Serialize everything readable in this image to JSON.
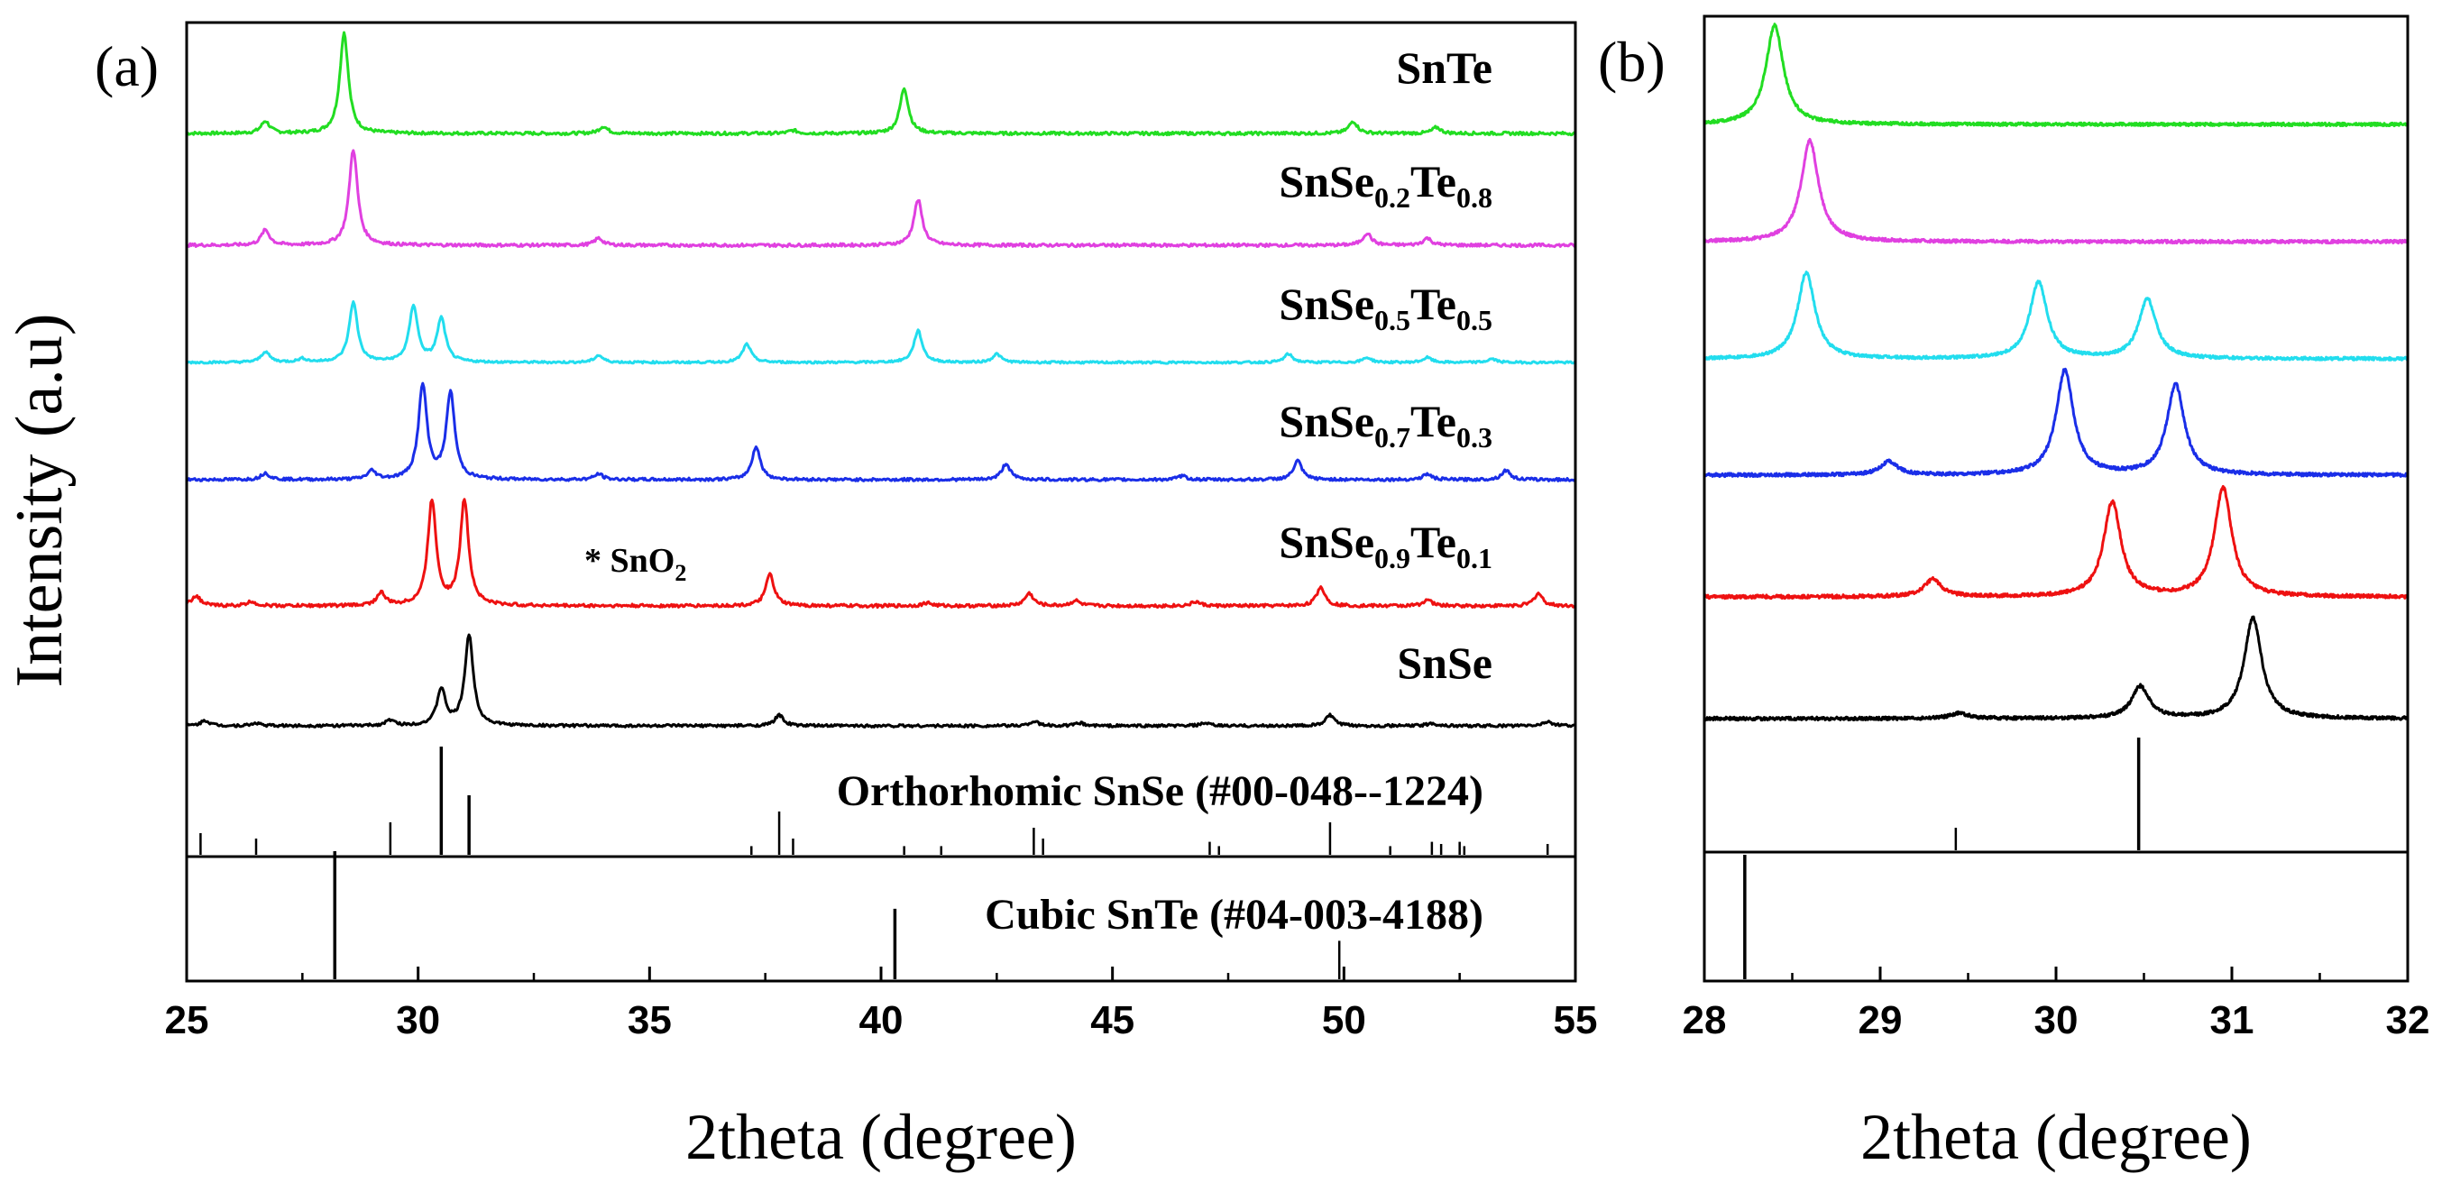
{
  "chart_data": [
    {
      "type": "line",
      "panel_label": "(a)",
      "xlabel": "2theta (degree)",
      "ylabel": "Intensity (a.u)",
      "xlim": [
        25,
        55
      ],
      "xticks": [
        25,
        30,
        35,
        40,
        45,
        50,
        55
      ],
      "xtick_labels": [
        "25",
        "30",
        "35",
        "40",
        "45",
        "50",
        "55"
      ],
      "series": [
        {
          "name": "SnTe",
          "label_main": "SnTe",
          "color": "#22dd22",
          "peaks": [
            [
              26.7,
              0.12
            ],
            [
              28.4,
              1.0
            ],
            [
              34.0,
              0.07
            ],
            [
              38.1,
              0.03
            ],
            [
              40.5,
              0.45
            ],
            [
              50.2,
              0.12
            ],
            [
              52.0,
              0.06
            ]
          ]
        },
        {
          "name": "SnSe0.2Te0.8",
          "label_main": "SnSe",
          "label_sub1": "0.2",
          "label_mid": "Te",
          "label_sub2": "0.8",
          "color": "#e040e0",
          "peaks": [
            [
              26.7,
              0.15
            ],
            [
              28.6,
              0.95
            ],
            [
              33.9,
              0.07
            ],
            [
              40.8,
              0.45
            ],
            [
              50.5,
              0.12
            ],
            [
              51.8,
              0.07
            ]
          ]
        },
        {
          "name": "SnSe0.5Te0.5",
          "label_main": "SnSe",
          "label_sub1": "0.5",
          "label_mid": "Te",
          "label_sub2": "0.5",
          "color": "#22ddee",
          "peaks": [
            [
              26.7,
              0.15
            ],
            [
              27.5,
              0.05
            ],
            [
              28.6,
              0.85
            ],
            [
              29.9,
              0.8
            ],
            [
              30.5,
              0.62
            ],
            [
              33.9,
              0.1
            ],
            [
              37.1,
              0.26
            ],
            [
              40.8,
              0.45
            ],
            [
              42.5,
              0.12
            ],
            [
              48.8,
              0.12
            ],
            [
              50.5,
              0.07
            ],
            [
              51.8,
              0.07
            ],
            [
              53.2,
              0.05
            ]
          ]
        },
        {
          "name": "SnSe0.7Te0.3",
          "label_main": "SnSe",
          "label_sub1": "0.7",
          "label_mid": "Te",
          "label_sub2": "0.3",
          "color": "#1a2ee8",
          "peaks": [
            [
              26.7,
              0.07
            ],
            [
              29.0,
              0.09
            ],
            [
              30.1,
              1.0
            ],
            [
              30.7,
              0.92
            ],
            [
              33.9,
              0.06
            ],
            [
              37.3,
              0.35
            ],
            [
              42.7,
              0.17
            ],
            [
              46.5,
              0.04
            ],
            [
              49.0,
              0.2
            ],
            [
              51.8,
              0.06
            ],
            [
              53.5,
              0.1
            ]
          ]
        },
        {
          "name": "SnSe0.9Te0.1",
          "label_main": "SnSe",
          "label_sub1": "0.9",
          "label_mid": "Te",
          "label_sub2": "0.1",
          "color": "#ee1111",
          "peaks": [
            [
              25.2,
              0.1
            ],
            [
              26.4,
              0.04
            ],
            [
              29.2,
              0.12
            ],
            [
              30.3,
              1.0
            ],
            [
              31.0,
              1.0
            ],
            [
              37.6,
              0.3
            ],
            [
              41.0,
              0.03
            ],
            [
              43.2,
              0.12
            ],
            [
              44.2,
              0.05
            ],
            [
              46.8,
              0.04
            ],
            [
              49.5,
              0.18
            ],
            [
              51.8,
              0.06
            ],
            [
              54.2,
              0.12
            ]
          ]
        },
        {
          "name": "SnSe",
          "label_main": "SnSe",
          "color": "#000000",
          "peaks": [
            [
              25.4,
              0.06
            ],
            [
              26.5,
              0.03
            ],
            [
              29.4,
              0.06
            ],
            [
              30.5,
              0.4
            ],
            [
              31.1,
              1.0
            ],
            [
              37.8,
              0.12
            ],
            [
              43.3,
              0.05
            ],
            [
              44.3,
              0.03
            ],
            [
              47.0,
              0.03
            ],
            [
              49.7,
              0.12
            ],
            [
              51.9,
              0.03
            ],
            [
              54.4,
              0.05
            ]
          ]
        }
      ],
      "annotation": {
        "text": "* SnO",
        "sub": "2",
        "x": 34.0
      },
      "references": [
        {
          "name": "Orthorhomic SnSe (#00-048--1224)",
          "label": "Orthorhomic SnSe (#00-048--1224)",
          "sticks": [
            [
              25.3,
              0.2
            ],
            [
              26.5,
              0.15
            ],
            [
              29.4,
              0.3
            ],
            [
              30.5,
              1.0
            ],
            [
              31.1,
              0.55
            ],
            [
              37.2,
              0.08
            ],
            [
              37.8,
              0.4
            ],
            [
              38.1,
              0.15
            ],
            [
              40.5,
              0.08
            ],
            [
              41.3,
              0.08
            ],
            [
              43.3,
              0.25
            ],
            [
              43.5,
              0.15
            ],
            [
              47.1,
              0.12
            ],
            [
              47.3,
              0.08
            ],
            [
              49.7,
              0.3
            ],
            [
              51.0,
              0.08
            ],
            [
              51.9,
              0.12
            ],
            [
              52.1,
              0.1
            ],
            [
              52.5,
              0.12
            ],
            [
              52.6,
              0.08
            ],
            [
              54.4,
              0.1
            ]
          ]
        },
        {
          "name": "Cubic SnTe (#04-003-4188)",
          "label": "Cubic SnTe (#04-003-4188)",
          "sticks": [
            [
              28.2,
              1.0
            ],
            [
              40.3,
              0.55
            ],
            [
              49.9,
              0.3
            ]
          ]
        }
      ]
    },
    {
      "type": "line",
      "panel_label": "(b)",
      "xlabel": "2theta (degree)",
      "xlim": [
        28,
        32
      ],
      "xticks": [
        28,
        29,
        30,
        31,
        32
      ],
      "xtick_labels": [
        "28",
        "29",
        "30",
        "31",
        "32"
      ],
      "series": [
        {
          "name": "SnTe",
          "color": "#22dd22",
          "peaks": [
            [
              28.4,
              1.0
            ]
          ]
        },
        {
          "name": "SnSe0.2Te0.8",
          "color": "#e040e0",
          "peaks": [
            [
              28.6,
              1.0
            ]
          ]
        },
        {
          "name": "SnSe0.5Te0.5",
          "color": "#22ddee",
          "peaks": [
            [
              28.58,
              0.9
            ],
            [
              29.9,
              0.8
            ],
            [
              30.52,
              0.62
            ]
          ]
        },
        {
          "name": "SnSe0.7Te0.3",
          "color": "#1a2ee8",
          "peaks": [
            [
              29.05,
              0.12
            ],
            [
              30.05,
              0.95
            ],
            [
              30.68,
              0.82
            ]
          ]
        },
        {
          "name": "SnSe0.9Te0.1",
          "color": "#ee1111",
          "peaks": [
            [
              29.3,
              0.15
            ],
            [
              30.32,
              0.82
            ],
            [
              30.95,
              0.94
            ]
          ]
        },
        {
          "name": "SnSe",
          "color": "#000000",
          "peaks": [
            [
              29.45,
              0.05
            ],
            [
              30.48,
              0.3
            ],
            [
              31.12,
              0.95
            ]
          ]
        }
      ],
      "references": [
        {
          "name": "Orthorhomic SnSe",
          "sticks": [
            [
              29.43,
              0.2
            ],
            [
              30.47,
              1.0
            ]
          ]
        },
        {
          "name": "Cubic SnTe",
          "sticks": [
            [
              28.23,
              1.0
            ]
          ]
        }
      ]
    }
  ]
}
